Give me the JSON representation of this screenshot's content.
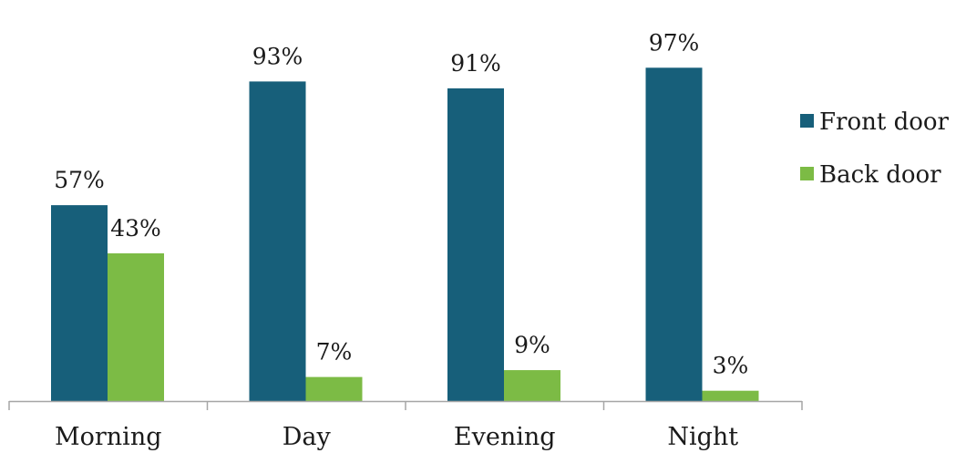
{
  "chart_data": {
    "type": "bar",
    "title": "",
    "xlabel": "",
    "ylabel": "",
    "categories": [
      "Morning",
      "Day",
      "Evening",
      "Night"
    ],
    "series": [
      {
        "name": "Front door",
        "values": [
          57,
          93,
          91,
          97
        ],
        "labels": [
          "57%",
          "93%",
          "91%",
          "97%"
        ],
        "color": "#175f7a"
      },
      {
        "name": "Back door",
        "values": [
          43,
          7,
          9,
          3
        ],
        "labels": [
          "43%",
          "7%",
          "9%",
          "3%"
        ],
        "color": "#7cbb45"
      }
    ],
    "ylim": [
      0,
      100
    ],
    "grid": false,
    "legend_position": "right",
    "axis_color": "#a6a6a6"
  }
}
